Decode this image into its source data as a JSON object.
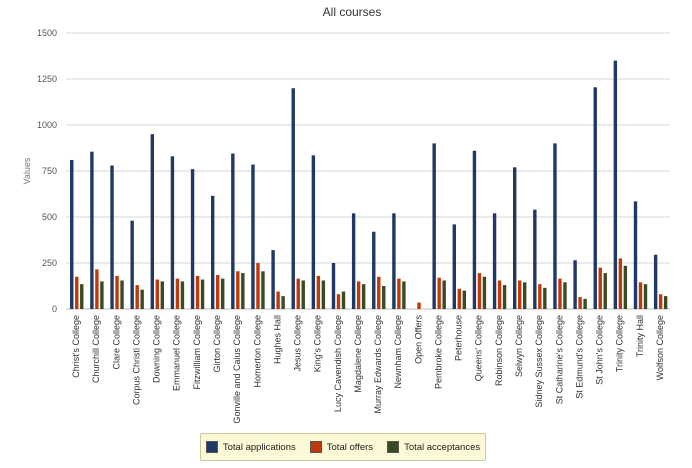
{
  "chart_data": {
    "type": "bar",
    "title": "All courses",
    "ylabel": "Values",
    "xlabel": "",
    "ylim": [
      0,
      1500
    ],
    "yticks": [
      "0",
      "250",
      "500",
      "750",
      "1000",
      "1250",
      "1500"
    ],
    "grid": true,
    "legend_position": "bottom",
    "categories": [
      "Christ's College",
      "Churchill College",
      "Clare College",
      "Corpus Christi College",
      "Downing College",
      "Emmanuel College",
      "Fitzwilliam College",
      "Girton College",
      "Gonville and Caius College",
      "Homerton College",
      "Hughes Hall",
      "Jesus College",
      "King's College",
      "Lucy Cavendish College",
      "Magdalene College",
      "Murray Edwards College",
      "Newnham College",
      "Open Offers",
      "Pembroke College",
      "Peterhouse",
      "Queens' College",
      "Robinson College",
      "Selwyn College",
      "Sidney Sussex College",
      "St Catharine's College",
      "St Edmund's College",
      "St John's College",
      "Trinity College",
      "Trinity Hall",
      "Wolfson College"
    ],
    "series": [
      {
        "name": "Total applications",
        "color": "#1f3864",
        "values": [
          810,
          855,
          780,
          480,
          950,
          830,
          760,
          615,
          845,
          785,
          320,
          1200,
          835,
          250,
          520,
          420,
          520,
          0,
          900,
          460,
          860,
          520,
          770,
          540,
          900,
          265,
          1205,
          1350,
          585,
          295
        ]
      },
      {
        "name": "Total offers",
        "color": "#c0390b",
        "values": [
          175,
          215,
          180,
          130,
          160,
          165,
          180,
          185,
          205,
          250,
          95,
          165,
          180,
          80,
          150,
          175,
          165,
          35,
          170,
          110,
          195,
          155,
          155,
          135,
          165,
          65,
          225,
          275,
          145,
          80
        ]
      },
      {
        "name": "Total acceptances",
        "color": "#3a4a23",
        "values": [
          135,
          150,
          155,
          105,
          150,
          150,
          160,
          165,
          195,
          205,
          70,
          155,
          155,
          95,
          135,
          125,
          150,
          0,
          155,
          100,
          175,
          130,
          145,
          115,
          145,
          55,
          195,
          235,
          135,
          70
        ]
      }
    ]
  }
}
